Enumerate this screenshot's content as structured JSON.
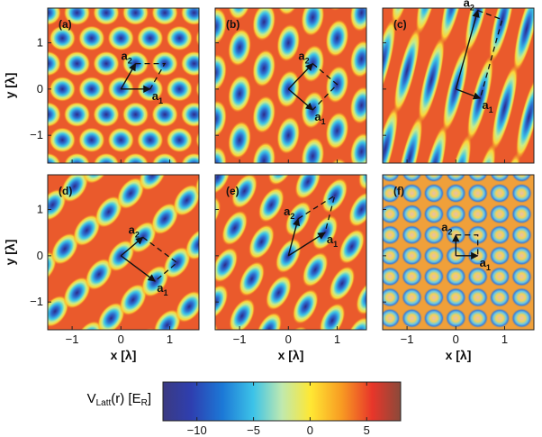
{
  "figure": {
    "axis_labels": {
      "x": "x  [λ]",
      "y": "y  [λ]"
    },
    "xticks": [
      "−1",
      "0",
      "1"
    ],
    "yticks": [
      "1",
      "0",
      "−1"
    ],
    "panels": [
      {
        "tag": "(a)",
        "a1": "a",
        "a2": "a",
        "sub1": "1",
        "sub2": "2"
      },
      {
        "tag": "(b)",
        "a1": "a",
        "a2": "a",
        "sub1": "1",
        "sub2": "2"
      },
      {
        "tag": "(c)",
        "a1": "a",
        "a2": "a",
        "sub1": "1",
        "sub2": "2"
      },
      {
        "tag": "(d)",
        "a1": "a",
        "a2": "a",
        "sub1": "1",
        "sub2": "2"
      },
      {
        "tag": "(e)",
        "a1": "a",
        "a2": "a",
        "sub1": "1",
        "sub2": "2"
      },
      {
        "tag": "(f)",
        "a1": "a",
        "a2": "a",
        "sub1": "1",
        "sub2": "2"
      }
    ]
  },
  "colorbar": {
    "label": "V",
    "label_sub": "Latt",
    "label_rest": "(r) [E",
    "label_sub2": "R",
    "label_end": "]",
    "ticks": [
      "−10",
      "−5",
      "0",
      "5"
    ],
    "range": [
      -13,
      8
    ]
  }
}
